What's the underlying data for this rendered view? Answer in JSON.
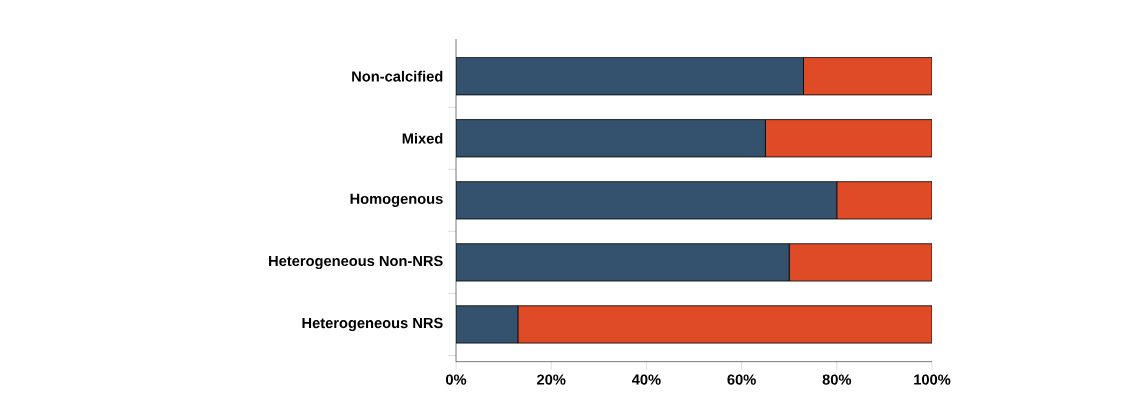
{
  "chart_data": {
    "type": "bar",
    "orientation": "horizontal",
    "stacked": true,
    "categories": [
      "Non-calcified",
      "Mixed",
      "Homogenous",
      "Heterogeneous Non-NRS",
      "Heterogeneous NRS"
    ],
    "series": [
      {
        "color": "#34526e",
        "values": [
          73,
          65,
          80,
          70,
          13
        ]
      },
      {
        "color": "#de4b26",
        "values": [
          27,
          35,
          20,
          30,
          87
        ]
      }
    ],
    "xlim": [
      0,
      100
    ],
    "xticks": [
      {
        "value": 0,
        "label": "0%"
      },
      {
        "value": 20,
        "label": "20%"
      },
      {
        "value": 40,
        "label": "40%"
      },
      {
        "value": 60,
        "label": "60%"
      },
      {
        "value": 80,
        "label": "80%"
      },
      {
        "value": 100,
        "label": "100%"
      }
    ],
    "grid": false
  }
}
